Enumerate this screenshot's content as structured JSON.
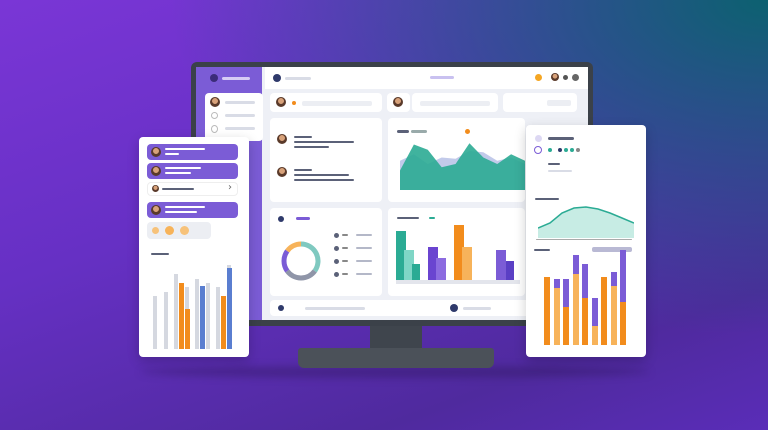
{
  "colors": {
    "purple": "#7b5cd6",
    "teal": "#2bab94",
    "orange": "#f28c1c",
    "light_orange": "#f7b35a",
    "blue": "#5a7ed0",
    "gray": "#d5d8e0",
    "bezel": "#3b4149"
  },
  "monitor": {
    "area_chart": {
      "type": "area",
      "series": [
        [
          30,
          70,
          62,
          35,
          40,
          72,
          50,
          40,
          55,
          45
        ],
        [
          45,
          55,
          40,
          50,
          48,
          60,
          58,
          45,
          50,
          40
        ]
      ]
    },
    "bar_chart": {
      "type": "bar",
      "values": [
        90,
        55,
        30,
        60,
        40,
        100,
        60,
        55,
        35
      ],
      "colors": [
        "#2bab94",
        "#7fd6c6",
        "#2bab94",
        "#6a44d0",
        "#8c6be0",
        "#f28c1c",
        "#f7b35a",
        "#7b5cd6",
        "#5a3fc4"
      ]
    },
    "donut": {
      "type": "pie",
      "values": [
        35,
        30,
        20,
        15
      ],
      "colors": [
        "#7fc9c0",
        "#8f95a8",
        "#7b5cd6",
        "#f7b35a"
      ]
    }
  },
  "left_panel": {
    "bar_chart": {
      "type": "bar",
      "series": [
        {
          "values": [
            60,
            65,
            85,
            70,
            80,
            75,
            70,
            95
          ]
        },
        {
          "values": [
            0,
            0,
            75,
            45,
            72,
            0,
            60,
            92
          ]
        }
      ],
      "colors": [
        "#d5d8e0",
        "#f28c1c",
        "#5a7ed0"
      ]
    }
  },
  "right_panel": {
    "line_chart": {
      "type": "area",
      "values": [
        20,
        30,
        50,
        60,
        62,
        58,
        50,
        40,
        30
      ]
    },
    "stacked_bar": {
      "type": "bar",
      "series": [
        {
          "values": [
            72,
            60,
            40,
            75,
            50,
            20,
            72,
            62,
            45
          ]
        },
        {
          "values": [
            0,
            10,
            30,
            20,
            35,
            30,
            0,
            15,
            55
          ]
        }
      ],
      "colors": [
        "#f28c1c",
        "#7b5cd6"
      ]
    }
  }
}
